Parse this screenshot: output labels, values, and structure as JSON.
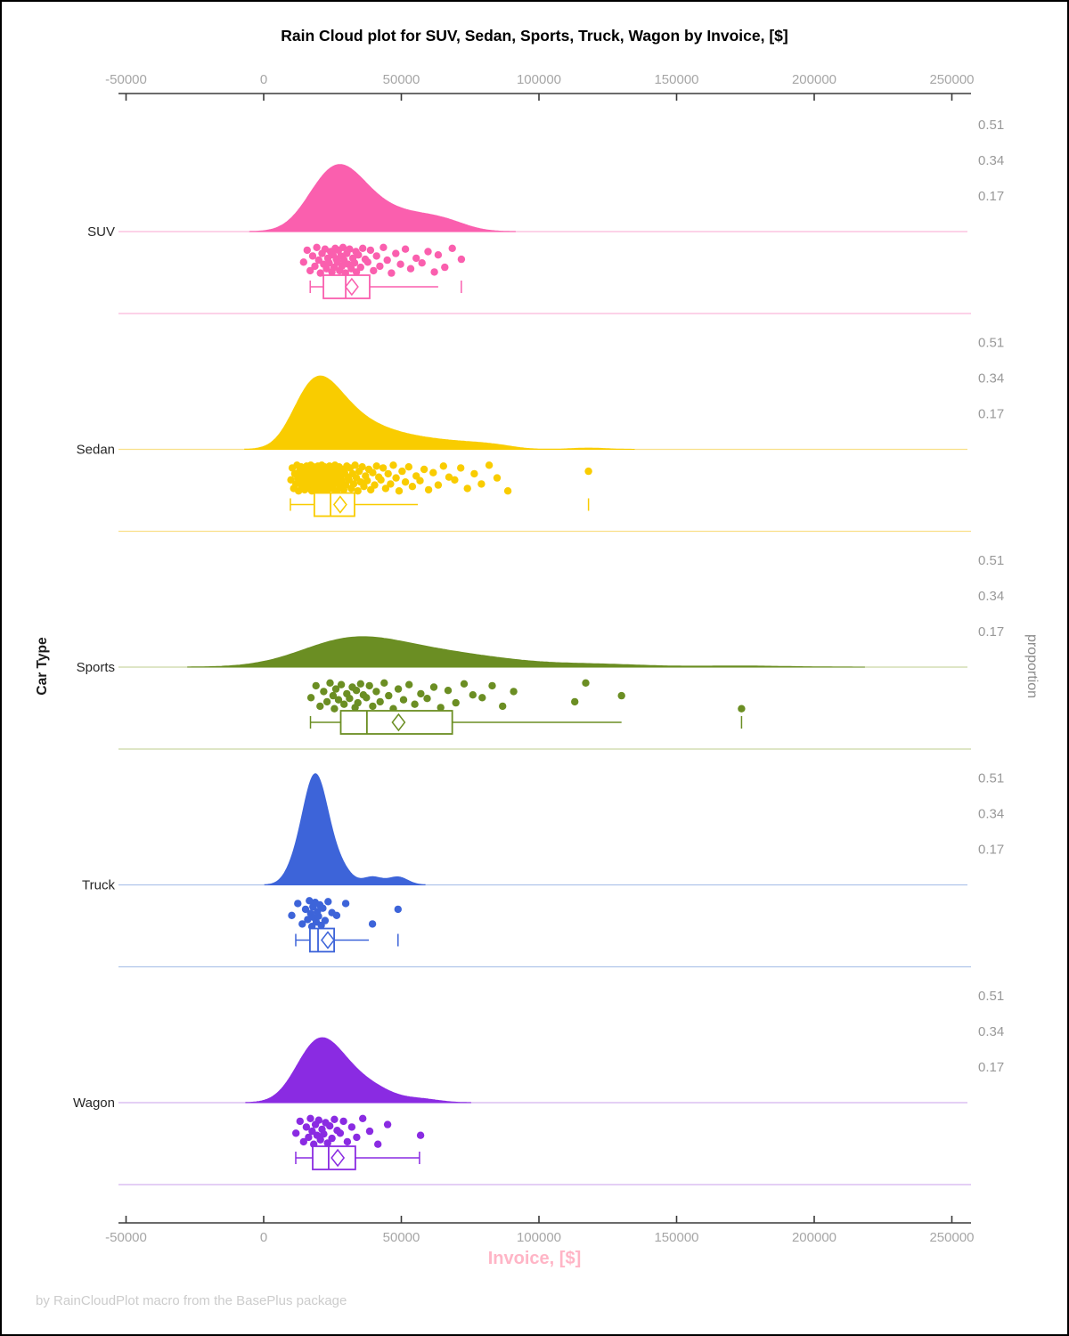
{
  "title": "Rain Cloud plot for SUV, Sedan, Sports, Truck, Wagon by Invoice, [$]",
  "footer": "by RainCloudPlot macro from the BasePlus package",
  "y_axis_label": "Car Type",
  "y2_axis_label": "proportion",
  "x_axis_label": "Invoice, [$]",
  "colors": {
    "background": "#ffffff",
    "frame_border": "#000000",
    "axis_line": "#3a3a3a",
    "tick_label": "#a6a6a6",
    "proportion_tick_label": "#999999",
    "category_label": "#262626",
    "x_axis_label": "#ffb5c6",
    "footer_text": "#cccccc"
  },
  "chart_data": {
    "type": "raincloud",
    "xlabel": "Invoice, [$]",
    "ylabel": "Car Type",
    "y2label": "proportion",
    "x_ticks": [
      -50000,
      0,
      50000,
      100000,
      150000,
      200000,
      250000
    ],
    "proportion_ticks": [
      0.51,
      0.34,
      0.17
    ],
    "grid": false,
    "groups": [
      {
        "label": "SUV",
        "color": "#fa5fae",
        "light_color": "#f9b8db",
        "peak_proportion": 0.32,
        "kde_bandwidth": 7000,
        "box": {
          "whisker_low": 16900,
          "q1": 21700,
          "median": 29800,
          "mean": 32000,
          "q3": 38500,
          "whisker_high": 63400,
          "outliers": [
            71800
          ],
          "cap_low": true,
          "cap_high": false
        },
        "points": [
          14500,
          15800,
          16900,
          17800,
          18600,
          19300,
          20000,
          20600,
          21200,
          21800,
          22300,
          22800,
          23300,
          23800,
          24300,
          24800,
          25200,
          25600,
          26000,
          26400,
          26800,
          27200,
          27600,
          28000,
          28400,
          28800,
          29200,
          29700,
          30200,
          30700,
          31200,
          31800,
          32400,
          33000,
          33500,
          33700,
          34400,
          35200,
          36000,
          36900,
          37800,
          38800,
          39900,
          41000,
          42200,
          43500,
          44900,
          46400,
          48000,
          49700,
          51500,
          53400,
          55400,
          57500,
          59700,
          62000,
          63400,
          65800,
          68500,
          71800
        ],
        "jitter": [
          0.55,
          0.12,
          0.86,
          0.33,
          0.7,
          0.02,
          0.48,
          0.95,
          0.24,
          0.63,
          0.08,
          0.79,
          0.41,
          0.58,
          0.17,
          0.91,
          0.29,
          0.74,
          0.05,
          0.45,
          0.55,
          0.12,
          0.86,
          0.33,
          0.7,
          0.02,
          0.48,
          0.95,
          0.24,
          0.63,
          0.08,
          0.79,
          0.41,
          0.58,
          0.17,
          0.91,
          0.29,
          0.74,
          0.05,
          0.45,
          0.55,
          0.12,
          0.86,
          0.33,
          0.7,
          0.02,
          0.48,
          0.95,
          0.24,
          0.63,
          0.08,
          0.79,
          0.41,
          0.58,
          0.17,
          0.91,
          0.29,
          0.74,
          0.05,
          0.45
        ]
      },
      {
        "label": "Sedan",
        "color": "#f9cc00",
        "light_color": "#f9e089",
        "peak_proportion": 0.35,
        "kde_bandwidth": 6000,
        "box": {
          "whisker_low": 9700,
          "q1": 18400,
          "median": 24300,
          "mean": 27800,
          "q3": 33000,
          "whisker_high": 56000,
          "outliers": [
            118000
          ],
          "cap_low": true,
          "cap_high": false
        },
        "points": [
          9900,
          10400,
          10900,
          11300,
          11700,
          12100,
          12400,
          12700,
          13000,
          13300,
          13600,
          13900,
          14100,
          14400,
          14600,
          14900,
          15100,
          15400,
          15600,
          15900,
          16100,
          16300,
          16500,
          16700,
          16900,
          17100,
          17300,
          17500,
          17700,
          17900,
          18100,
          18300,
          18500,
          18700,
          18900,
          19100,
          19300,
          19500,
          19700,
          19900,
          20100,
          20300,
          20500,
          20700,
          20900,
          21100,
          21300,
          21500,
          21700,
          21900,
          22100,
          22300,
          22500,
          22700,
          23000,
          23200,
          23400,
          23700,
          23900,
          24200,
          24400,
          24700,
          25000,
          25300,
          25600,
          25900,
          26200,
          26500,
          26800,
          27100,
          27400,
          27700,
          28000,
          28400,
          28700,
          29100,
          29400,
          29800,
          30200,
          30600,
          31000,
          31400,
          31800,
          32300,
          32700,
          33200,
          33700,
          34200,
          34700,
          35200,
          35800,
          36400,
          37000,
          37600,
          38200,
          38900,
          39600,
          40300,
          41000,
          41800,
          42600,
          43400,
          44300,
          45200,
          46100,
          47100,
          48100,
          49200,
          50300,
          51500,
          52700,
          54000,
          55400,
          56800,
          58300,
          59900,
          61600,
          63400,
          65300,
          67300,
          69400,
          71600,
          74000,
          76500,
          79100,
          81900,
          84800,
          88700,
          118000
        ],
        "jitter": [
          0.55,
          0.12,
          0.86,
          0.33,
          0.7,
          0.02,
          0.48,
          0.95,
          0.24,
          0.63,
          0.08,
          0.79,
          0.41,
          0.58,
          0.17,
          0.91,
          0.29,
          0.74,
          0.05,
          0.45,
          0.55,
          0.12,
          0.86,
          0.33,
          0.7,
          0.02,
          0.48,
          0.95,
          0.24,
          0.63,
          0.08,
          0.79,
          0.41,
          0.58,
          0.17,
          0.91,
          0.29,
          0.74,
          0.05,
          0.45,
          0.55,
          0.12,
          0.86,
          0.33,
          0.7,
          0.02,
          0.48,
          0.95,
          0.24,
          0.63,
          0.08,
          0.79,
          0.41,
          0.58,
          0.17,
          0.91,
          0.29,
          0.74,
          0.05,
          0.45,
          0.55,
          0.12,
          0.86,
          0.33,
          0.7,
          0.02,
          0.48,
          0.95,
          0.24,
          0.63,
          0.08,
          0.79,
          0.41,
          0.58,
          0.17,
          0.91,
          0.29,
          0.74,
          0.05,
          0.45,
          0.55,
          0.12,
          0.86,
          0.33,
          0.7,
          0.02,
          0.48,
          0.95,
          0.24,
          0.63,
          0.08,
          0.79,
          0.41,
          0.58,
          0.17,
          0.91,
          0.29,
          0.74,
          0.05,
          0.45,
          0.55,
          0.12,
          0.86,
          0.33,
          0.7,
          0.02,
          0.48,
          0.95,
          0.24,
          0.63,
          0.08,
          0.79,
          0.41,
          0.58,
          0.17,
          0.91,
          0.29,
          0.74,
          0.05,
          0.45,
          0.55,
          0.12,
          0.86,
          0.33,
          0.7,
          0.02,
          0.48,
          0.95,
          0.24
        ]
      },
      {
        "label": "Sports",
        "color": "#6b8e23",
        "light_color": "#c9d6a3",
        "peak_proportion": 0.145,
        "kde_bandwidth": 16000,
        "box": {
          "whisker_low": 17000,
          "q1": 28000,
          "median": 37500,
          "mean": 49000,
          "q3": 68500,
          "whisker_high": 130000,
          "outliers": [
            173600
          ],
          "cap_low": true,
          "cap_high": false
        },
        "points": [
          17200,
          19000,
          20500,
          21800,
          23000,
          24100,
          25200,
          25700,
          26200,
          27200,
          28200,
          29200,
          30200,
          31200,
          32200,
          33200,
          33700,
          34200,
          35200,
          36200,
          37300,
          38400,
          39600,
          40900,
          42300,
          43800,
          45400,
          47100,
          48900,
          50800,
          52800,
          54900,
          57100,
          59400,
          61800,
          64300,
          67000,
          69800,
          72800,
          76000,
          79400,
          83000,
          86800,
          90800,
          113000,
          117000,
          130000,
          173600
        ],
        "jitter": [
          0.55,
          0.12,
          0.86,
          0.33,
          0.7,
          0.02,
          0.48,
          0.95,
          0.24,
          0.63,
          0.08,
          0.79,
          0.41,
          0.58,
          0.17,
          0.91,
          0.29,
          0.74,
          0.05,
          0.45,
          0.55,
          0.12,
          0.86,
          0.33,
          0.7,
          0.02,
          0.48,
          0.95,
          0.24,
          0.63,
          0.08,
          0.79,
          0.41,
          0.58,
          0.17,
          0.91,
          0.29,
          0.74,
          0.05,
          0.45,
          0.55,
          0.12,
          0.86,
          0.33,
          0.7,
          0.02,
          0.48,
          0.95
        ]
      },
      {
        "label": "Truck",
        "color": "#3d64d9",
        "light_color": "#afc4ea",
        "peak_proportion": 0.53,
        "kde_bandwidth": 3500,
        "box": {
          "whisker_low": 11650,
          "q1": 16800,
          "median": 19750,
          "mean": 23300,
          "q3": 25600,
          "whisker_high": 38200,
          "outliers": [
            48800
          ],
          "cap_low": true,
          "cap_high": false
        },
        "points": [
          10200,
          12400,
          14000,
          15200,
          16000,
          16600,
          17100,
          17500,
          17900,
          18300,
          18700,
          19100,
          19500,
          19900,
          20400,
          20900,
          21500,
          22300,
          23400,
          24800,
          26500,
          29800,
          39500,
          48800
        ],
        "jitter": [
          0.55,
          0.12,
          0.86,
          0.33,
          0.7,
          0.02,
          0.48,
          0.95,
          0.24,
          0.63,
          0.08,
          0.79,
          0.41,
          0.58,
          0.17,
          0.91,
          0.29,
          0.74,
          0.05,
          0.45,
          0.55,
          0.12,
          0.86,
          0.33
        ]
      },
      {
        "label": "Wagon",
        "color": "#8a2be2",
        "light_color": "#d3b2ef",
        "peak_proportion": 0.31,
        "kde_bandwidth": 6500,
        "box": {
          "whisker_low": 11650,
          "q1": 17800,
          "median": 23600,
          "mean": 26900,
          "q3": 33300,
          "whisker_high": 56600,
          "outliers": [],
          "cap_low": true,
          "cap_high": true
        },
        "points": [
          11700,
          13200,
          14500,
          15500,
          16300,
          17000,
          17600,
          18200,
          18800,
          19400,
          20000,
          20600,
          21200,
          21800,
          22500,
          23200,
          24000,
          24800,
          25700,
          26700,
          27800,
          29000,
          30400,
          32000,
          33800,
          36000,
          38500,
          41500,
          45000,
          57000
        ],
        "jitter": [
          0.55,
          0.12,
          0.86,
          0.33,
          0.7,
          0.02,
          0.48,
          0.95,
          0.24,
          0.63,
          0.08,
          0.79,
          0.41,
          0.58,
          0.17,
          0.91,
          0.29,
          0.74,
          0.05,
          0.45,
          0.55,
          0.12,
          0.86,
          0.33,
          0.7,
          0.02,
          0.48,
          0.95,
          0.24,
          0.63
        ]
      }
    ]
  }
}
